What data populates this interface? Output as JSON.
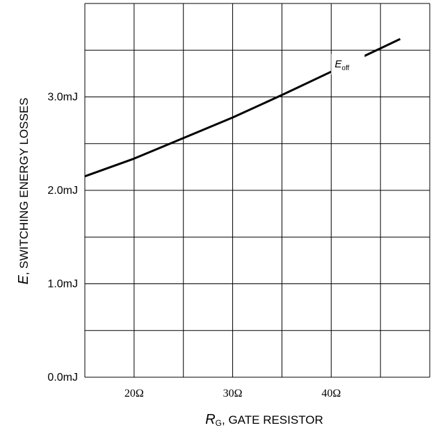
{
  "chart_data": {
    "type": "line",
    "xlabel": {
      "main": "R",
      "sub": "G",
      "rest": ", GATE RESISTOR"
    },
    "ylabel": {
      "main": "E",
      "rest": ", SWITCHING ENERGY LOSSES"
    },
    "x_ticks": [
      {
        "value": 20,
        "label": "20Ω"
      },
      {
        "value": 30,
        "label": "30Ω"
      },
      {
        "value": 40,
        "label": "40Ω"
      }
    ],
    "y_ticks": [
      {
        "value": 0.0,
        "label": "0.0mJ"
      },
      {
        "value": 1.0,
        "label": "1.0mJ"
      },
      {
        "value": 2.0,
        "label": "2.0mJ"
      },
      {
        "value": 3.0,
        "label": "3.0mJ"
      }
    ],
    "xlim": [
      15,
      50
    ],
    "ylim": [
      0,
      4.0
    ],
    "grid": true,
    "series": [
      {
        "name": {
          "main": "E",
          "sub": "off"
        },
        "x": [
          15,
          20,
          25,
          30,
          35,
          40,
          45,
          47
        ],
        "y": [
          2.15,
          2.34,
          2.56,
          2.78,
          3.02,
          3.27,
          3.52,
          3.62
        ]
      }
    ]
  }
}
